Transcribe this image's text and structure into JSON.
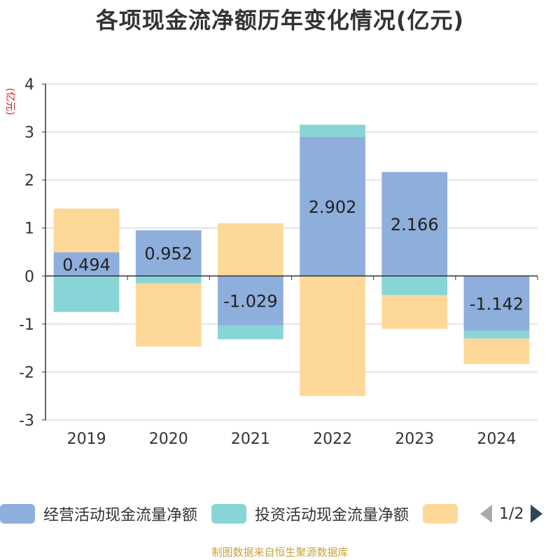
{
  "chart_data": {
    "type": "bar",
    "stacked": true,
    "title": "各项现金流净额历年变化情况(亿元)",
    "ylabel": "(亿元)",
    "xlabel": "",
    "ylim": [
      -3,
      4
    ],
    "yticks": [
      -3,
      -2,
      -1,
      0,
      1,
      2,
      3,
      4
    ],
    "categories": [
      "2019",
      "2020",
      "2021",
      "2022",
      "2023",
      "2024"
    ],
    "series": [
      {
        "name": "经营活动现金流量净额",
        "color": "#8eaedb",
        "values": [
          0.494,
          0.952,
          -1.029,
          2.902,
          2.166,
          -1.142
        ],
        "labels": [
          "0.494",
          "0.952",
          "-1.029",
          "2.902",
          "2.166",
          "-1.142"
        ]
      },
      {
        "name": "投资活动现金流量净额",
        "color": "#88d5d7",
        "values": [
          -0.75,
          -0.15,
          -0.29,
          0.25,
          -0.4,
          -0.16
        ]
      },
      {
        "name": "",
        "color": "#fdd898",
        "values": [
          0.91,
          -1.32,
          1.1,
          -2.5,
          -0.7,
          -0.53
        ]
      }
    ]
  },
  "legend": {
    "items": [
      "经营活动现金流量净额",
      "投资活动现金流量净额",
      ""
    ],
    "pager": "1/2"
  },
  "footer": "制图数据来自恒生聚源数据库"
}
